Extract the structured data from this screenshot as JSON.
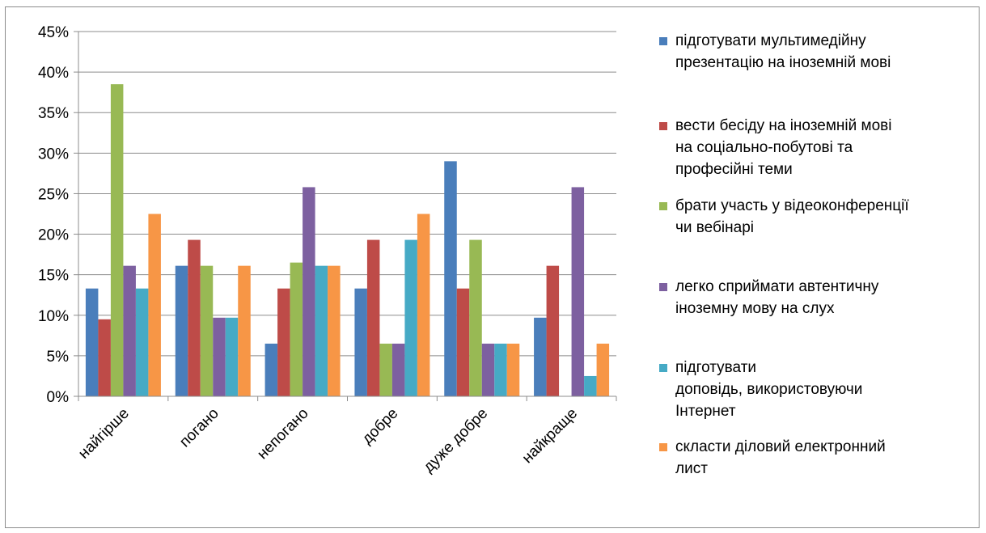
{
  "chart_data": {
    "type": "bar",
    "categories": [
      "найгірше",
      "погано",
      "непогано",
      "добре",
      "дуже добре",
      "найкраще"
    ],
    "y_tick_labels": [
      "0%",
      "5%",
      "10%",
      "15%",
      "20%",
      "25%",
      "30%",
      "35%",
      "40%",
      "45%"
    ],
    "ylim": [
      0,
      45
    ],
    "grid": true,
    "legend_position": "right",
    "series": [
      {
        "name": "підготувати мультимедійну\nпрезентацію на іноземній мові",
        "color": "#4a7ebb",
        "values": [
          13.3,
          16.1,
          6.5,
          13.3,
          29.0,
          9.7
        ]
      },
      {
        "name": "вести бесіду на іноземній мові\nна соціально-побутові та\nпрофесійні теми",
        "color": "#be4b48",
        "values": [
          9.5,
          19.3,
          13.3,
          19.3,
          13.3,
          16.1
        ]
      },
      {
        "name": "брати участь у відеоконференції\nчи вебінарі",
        "color": "#98b954",
        "values": [
          38.5,
          16.1,
          16.5,
          6.5,
          19.3,
          0
        ]
      },
      {
        "name": "легко сприймати автентичну\nіноземну мову на слух",
        "color": "#7d60a0",
        "values": [
          16.1,
          9.7,
          25.8,
          6.5,
          6.5,
          25.8
        ]
      },
      {
        "name": "підготувати\nдоповідь, використовуючи\nІнтернет",
        "color": "#46aac5",
        "values": [
          13.3,
          9.7,
          16.1,
          19.3,
          6.5,
          2.5
        ]
      },
      {
        "name": "скласти діловий електронний\nлист",
        "color": "#f79646",
        "values": [
          22.5,
          16.1,
          16.1,
          22.5,
          6.5,
          6.5
        ]
      }
    ]
  }
}
